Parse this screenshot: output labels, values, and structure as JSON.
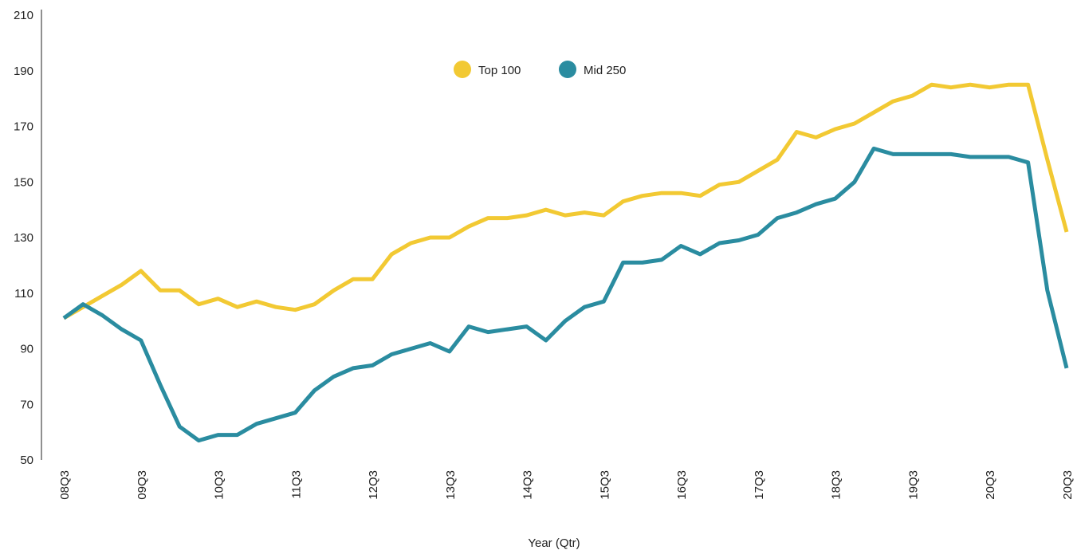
{
  "chart_data": {
    "type": "line",
    "x_label": "Year (Qtr)",
    "categories": [
      "08Q3",
      null,
      null,
      null,
      "09Q3",
      null,
      null,
      null,
      "10Q3",
      null,
      null,
      null,
      "11Q3",
      null,
      null,
      null,
      "12Q3",
      null,
      null,
      null,
      "13Q3",
      null,
      null,
      null,
      "14Q3",
      null,
      null,
      null,
      "15Q3",
      null,
      null,
      null,
      "16Q3",
      null,
      null,
      null,
      "17Q3",
      null,
      null,
      null,
      "18Q3",
      null,
      null,
      null,
      "19Q3",
      null,
      null,
      null,
      "20Q3",
      null,
      null,
      null,
      "20Q3"
    ],
    "series": [
      {
        "name": "Top 100",
        "color": "#f2c933",
        "values": [
          101,
          105,
          109,
          113,
          118,
          111,
          111,
          106,
          108,
          105,
          107,
          105,
          104,
          106,
          111,
          115,
          115,
          124,
          128,
          130,
          130,
          134,
          137,
          137,
          138,
          140,
          138,
          139,
          138,
          143,
          145,
          146,
          146,
          145,
          149,
          150,
          154,
          158,
          168,
          166,
          169,
          171,
          175,
          179,
          181,
          185,
          184,
          185,
          184,
          185,
          185,
          158,
          132
        ]
      },
      {
        "name": "Mid 250",
        "color": "#2a8ca0",
        "values": [
          101,
          106,
          102,
          97,
          93,
          77,
          62,
          57,
          59,
          59,
          63,
          65,
          67,
          75,
          80,
          83,
          84,
          88,
          90,
          92,
          89,
          98,
          96,
          97,
          98,
          93,
          100,
          105,
          107,
          121,
          121,
          122,
          127,
          124,
          128,
          129,
          131,
          137,
          139,
          142,
          144,
          150,
          162,
          160,
          160,
          160,
          160,
          159,
          159,
          159,
          157,
          111,
          83
        ]
      }
    ],
    "ylim": [
      50,
      210
    ],
    "yticks": [
      50,
      70,
      90,
      110,
      130,
      150,
      170,
      190,
      210
    ],
    "legend": "top"
  }
}
